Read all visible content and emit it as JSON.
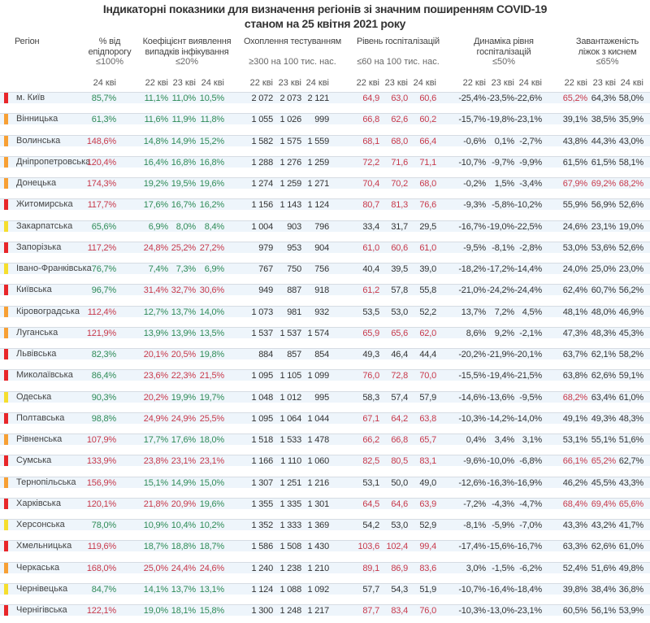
{
  "title_line1": "Індикаторні показники для визначення регіонів зі значним поширенням COVID-19",
  "title_line2": "станом на 25 квітня 2021 року",
  "headers": {
    "region": "Регіон",
    "epid": "% від епідпорогу",
    "epid_thr": "≤100%",
    "coef": "Коефіцієнт виявлення випадків інфікування",
    "coef_thr": "≤20%",
    "test": "Охоплення тестуванням",
    "test_thr": "≥300 на 100 тис. нас.",
    "hosp": "Рівень госпіталізацій",
    "hosp_thr": "≤60 на 100 тис. нас.",
    "dyn": "Динаміка рівня госпіталізацій",
    "dyn_thr": "≤50%",
    "beds": "Завантаженість ліжок з киснем",
    "beds_thr": "≤65%"
  },
  "dates": [
    "24 кві",
    "22 кві",
    "23 кві",
    "24 кві",
    "22 кві",
    "23 кві",
    "24 кві",
    "22 кві",
    "23 кві",
    "24 кві",
    "22 кві",
    "23 кві",
    "24 кві",
    "22 кві",
    "23 кві",
    "24 кві"
  ],
  "colors": {
    "red": "#e8262a",
    "orange": "#f7a035",
    "yellow": "#f5de2e",
    "green_text": "#2e8b57",
    "red_text": "#c8394b"
  },
  "rows": [
    {
      "region": "м. Київ",
      "level": "red",
      "epid": "85,7%",
      "coef": [
        "11,1%",
        "11,0%",
        "10,5%"
      ],
      "test": [
        "2 072",
        "2 073",
        "2 121"
      ],
      "hosp": [
        "64,9",
        "63,0",
        "60,6"
      ],
      "dyn": [
        "-25,4%",
        "-23,5%",
        "-22,6%"
      ],
      "beds": [
        "65,2%",
        "64,3%",
        "58,0%"
      ]
    },
    {
      "region": "Вінницька",
      "level": "orange",
      "epid": "61,3%",
      "coef": [
        "11,6%",
        "11,9%",
        "11,8%"
      ],
      "test": [
        "1 055",
        "1 026",
        "999"
      ],
      "hosp": [
        "66,8",
        "62,6",
        "60,2"
      ],
      "dyn": [
        "-15,7%",
        "-19,8%",
        "-23,1%"
      ],
      "beds": [
        "39,1%",
        "38,5%",
        "35,9%"
      ]
    },
    {
      "region": "Волинська",
      "level": "orange",
      "epid": "148,6%",
      "coef": [
        "14,8%",
        "14,9%",
        "15,2%"
      ],
      "test": [
        "1 582",
        "1 575",
        "1 559"
      ],
      "hosp": [
        "68,1",
        "68,0",
        "66,4"
      ],
      "dyn": [
        "-0,6%",
        "0,1%",
        "-2,7%"
      ],
      "beds": [
        "43,8%",
        "44,3%",
        "43,0%"
      ]
    },
    {
      "region": "Дніпропетровська",
      "level": "orange",
      "epid": "120,4%",
      "coef": [
        "16,4%",
        "16,8%",
        "16,8%"
      ],
      "test": [
        "1 288",
        "1 276",
        "1 259"
      ],
      "hosp": [
        "72,2",
        "71,6",
        "71,1"
      ],
      "dyn": [
        "-10,7%",
        "-9,7%",
        "-9,9%"
      ],
      "beds": [
        "61,5%",
        "61,5%",
        "58,1%"
      ]
    },
    {
      "region": "Донецька",
      "level": "orange",
      "epid": "174,3%",
      "coef": [
        "19,2%",
        "19,5%",
        "19,6%"
      ],
      "test": [
        "1 274",
        "1 259",
        "1 271"
      ],
      "hosp": [
        "70,4",
        "70,2",
        "68,0"
      ],
      "dyn": [
        "-0,2%",
        "1,5%",
        "-3,4%"
      ],
      "beds": [
        "67,9%",
        "69,2%",
        "68,2%"
      ]
    },
    {
      "region": "Житомирська",
      "level": "red",
      "epid": "117,7%",
      "coef": [
        "17,6%",
        "16,7%",
        "16,2%"
      ],
      "test": [
        "1 156",
        "1 143",
        "1 124"
      ],
      "hosp": [
        "80,7",
        "81,3",
        "76,6"
      ],
      "dyn": [
        "-9,3%",
        "-5,8%",
        "-10,2%"
      ],
      "beds": [
        "55,9%",
        "56,9%",
        "52,6%"
      ]
    },
    {
      "region": "Закарпатська",
      "level": "yellow",
      "epid": "65,6%",
      "coef": [
        "6,9%",
        "8,0%",
        "8,4%"
      ],
      "test": [
        "1 004",
        "903",
        "796"
      ],
      "hosp": [
        "33,4",
        "31,7",
        "29,5"
      ],
      "dyn": [
        "-16,7%",
        "-19,0%",
        "-22,5%"
      ],
      "beds": [
        "24,6%",
        "23,1%",
        "19,0%"
      ]
    },
    {
      "region": "Запорізька",
      "level": "red",
      "epid": "117,2%",
      "coef": [
        "24,8%",
        "25,2%",
        "27,2%"
      ],
      "test": [
        "979",
        "953",
        "904"
      ],
      "hosp": [
        "61,0",
        "60,6",
        "61,0"
      ],
      "dyn": [
        "-9,5%",
        "-8,1%",
        "-2,8%"
      ],
      "beds": [
        "53,0%",
        "53,6%",
        "52,6%"
      ]
    },
    {
      "region": "Івано-Франківська",
      "level": "yellow",
      "epid": "76,7%",
      "coef": [
        "7,4%",
        "7,3%",
        "6,9%"
      ],
      "test": [
        "767",
        "750",
        "756"
      ],
      "hosp": [
        "40,4",
        "39,5",
        "39,0"
      ],
      "dyn": [
        "-18,2%",
        "-17,2%",
        "-14,4%"
      ],
      "beds": [
        "24,0%",
        "25,0%",
        "23,0%"
      ]
    },
    {
      "region": "Київська",
      "level": "red",
      "epid": "96,7%",
      "coef": [
        "31,4%",
        "32,7%",
        "30,6%"
      ],
      "test": [
        "949",
        "887",
        "918"
      ],
      "hosp": [
        "61,2",
        "57,8",
        "55,8"
      ],
      "dyn": [
        "-21,0%",
        "-24,2%",
        "-24,4%"
      ],
      "beds": [
        "62,4%",
        "60,7%",
        "56,2%"
      ]
    },
    {
      "region": "Кіровоградська",
      "level": "orange",
      "epid": "112,4%",
      "coef": [
        "12,7%",
        "13,7%",
        "14,0%"
      ],
      "test": [
        "1 073",
        "981",
        "932"
      ],
      "hosp": [
        "53,5",
        "53,0",
        "52,2"
      ],
      "dyn": [
        "13,7%",
        "7,2%",
        "4,5%"
      ],
      "beds": [
        "48,1%",
        "48,0%",
        "46,9%"
      ]
    },
    {
      "region": "Луганська",
      "level": "orange",
      "epid": "121,9%",
      "coef": [
        "13,9%",
        "13,9%",
        "13,5%"
      ],
      "test": [
        "1 537",
        "1 537",
        "1 574"
      ],
      "hosp": [
        "65,9",
        "65,6",
        "62,0"
      ],
      "dyn": [
        "8,6%",
        "9,2%",
        "-2,1%"
      ],
      "beds": [
        "47,3%",
        "48,3%",
        "45,3%"
      ]
    },
    {
      "region": "Львівська",
      "level": "red",
      "epid": "82,3%",
      "coef": [
        "20,1%",
        "20,5%",
        "19,8%"
      ],
      "test": [
        "884",
        "857",
        "854"
      ],
      "hosp": [
        "49,3",
        "46,4",
        "44,4"
      ],
      "dyn": [
        "-20,2%",
        "-21,9%",
        "-20,1%"
      ],
      "beds": [
        "63,7%",
        "62,1%",
        "58,2%"
      ]
    },
    {
      "region": "Миколаївська",
      "level": "red",
      "epid": "86,4%",
      "coef": [
        "23,6%",
        "22,3%",
        "21,5%"
      ],
      "test": [
        "1 095",
        "1 105",
        "1 099"
      ],
      "hosp": [
        "76,0",
        "72,8",
        "70,0"
      ],
      "dyn": [
        "-15,5%",
        "-19,4%",
        "-21,5%"
      ],
      "beds": [
        "63,8%",
        "62,6%",
        "59,1%"
      ]
    },
    {
      "region": "Одеська",
      "level": "yellow",
      "epid": "90,3%",
      "coef": [
        "20,2%",
        "19,9%",
        "19,7%"
      ],
      "test": [
        "1 048",
        "1 012",
        "995"
      ],
      "hosp": [
        "58,3",
        "57,4",
        "57,9"
      ],
      "dyn": [
        "-14,6%",
        "-13,6%",
        "-9,5%"
      ],
      "beds": [
        "68,2%",
        "63,4%",
        "61,0%"
      ]
    },
    {
      "region": "Полтавська",
      "level": "red",
      "epid": "98,8%",
      "coef": [
        "24,9%",
        "24,9%",
        "25,5%"
      ],
      "test": [
        "1 095",
        "1 064",
        "1 044"
      ],
      "hosp": [
        "67,1",
        "64,2",
        "63,8"
      ],
      "dyn": [
        "-10,3%",
        "-14,2%",
        "-14,0%"
      ],
      "beds": [
        "49,1%",
        "49,3%",
        "48,3%"
      ]
    },
    {
      "region": "Рівненська",
      "level": "orange",
      "epid": "107,9%",
      "coef": [
        "17,7%",
        "17,6%",
        "18,0%"
      ],
      "test": [
        "1 518",
        "1 533",
        "1 478"
      ],
      "hosp": [
        "66,2",
        "66,8",
        "65,7"
      ],
      "dyn": [
        "0,4%",
        "3,4%",
        "3,1%"
      ],
      "beds": [
        "53,1%",
        "55,1%",
        "51,6%"
      ]
    },
    {
      "region": "Сумська",
      "level": "red",
      "epid": "133,9%",
      "coef": [
        "23,8%",
        "23,1%",
        "23,1%"
      ],
      "test": [
        "1 166",
        "1 110",
        "1 060"
      ],
      "hosp": [
        "82,5",
        "80,5",
        "83,1"
      ],
      "dyn": [
        "-9,6%",
        "-10,0%",
        "-6,8%"
      ],
      "beds": [
        "66,1%",
        "65,2%",
        "62,7%"
      ]
    },
    {
      "region": "Тернопільська",
      "level": "orange",
      "epid": "156,9%",
      "coef": [
        "15,1%",
        "14,9%",
        "15,0%"
      ],
      "test": [
        "1 307",
        "1 251",
        "1 216"
      ],
      "hosp": [
        "53,1",
        "50,0",
        "49,0"
      ],
      "dyn": [
        "-12,6%",
        "-16,3%",
        "-16,9%"
      ],
      "beds": [
        "46,2%",
        "45,5%",
        "43,3%"
      ]
    },
    {
      "region": "Харківська",
      "level": "red",
      "epid": "120,1%",
      "coef": [
        "21,8%",
        "20,9%",
        "19,6%"
      ],
      "test": [
        "1 355",
        "1 335",
        "1 301"
      ],
      "hosp": [
        "64,5",
        "64,6",
        "63,9"
      ],
      "dyn": [
        "-7,2%",
        "-4,3%",
        "-4,7%"
      ],
      "beds": [
        "68,4%",
        "69,4%",
        "65,6%"
      ]
    },
    {
      "region": "Херсонська",
      "level": "yellow",
      "epid": "78,0%",
      "coef": [
        "10,9%",
        "10,4%",
        "10,2%"
      ],
      "test": [
        "1 352",
        "1 333",
        "1 369"
      ],
      "hosp": [
        "54,2",
        "53,0",
        "52,9"
      ],
      "dyn": [
        "-8,1%",
        "-5,9%",
        "-7,0%"
      ],
      "beds": [
        "43,3%",
        "43,2%",
        "41,7%"
      ]
    },
    {
      "region": "Хмельницька",
      "level": "red",
      "epid": "119,6%",
      "coef": [
        "18,7%",
        "18,8%",
        "18,7%"
      ],
      "test": [
        "1 586",
        "1 508",
        "1 430"
      ],
      "hosp": [
        "103,6",
        "102,4",
        "99,4"
      ],
      "dyn": [
        "-17,4%",
        "-15,6%",
        "-16,7%"
      ],
      "beds": [
        "63,3%",
        "62,6%",
        "61,0%"
      ]
    },
    {
      "region": "Черкаська",
      "level": "orange",
      "epid": "168,0%",
      "coef": [
        "25,0%",
        "24,4%",
        "24,6%"
      ],
      "test": [
        "1 240",
        "1 238",
        "1 210"
      ],
      "hosp": [
        "89,1",
        "86,9",
        "83,6"
      ],
      "dyn": [
        "3,0%",
        "-1,5%",
        "-6,2%"
      ],
      "beds": [
        "52,4%",
        "51,6%",
        "49,8%"
      ]
    },
    {
      "region": "Чернівецька",
      "level": "yellow",
      "epid": "84,7%",
      "coef": [
        "14,1%",
        "13,7%",
        "13,1%"
      ],
      "test": [
        "1 124",
        "1 088",
        "1 092"
      ],
      "hosp": [
        "57,7",
        "54,3",
        "51,9"
      ],
      "dyn": [
        "-10,7%",
        "-16,4%",
        "-18,4%"
      ],
      "beds": [
        "39,8%",
        "38,4%",
        "36,8%"
      ]
    },
    {
      "region": "Чернігівська",
      "level": "red",
      "epid": "122,1%",
      "coef": [
        "19,0%",
        "18,1%",
        "15,8%"
      ],
      "test": [
        "1 300",
        "1 248",
        "1 217"
      ],
      "hosp": [
        "87,7",
        "83,4",
        "76,0"
      ],
      "dyn": [
        "-10,3%",
        "-13,0%",
        "-23,1%"
      ],
      "beds": [
        "60,5%",
        "56,1%",
        "53,9%"
      ]
    }
  ]
}
